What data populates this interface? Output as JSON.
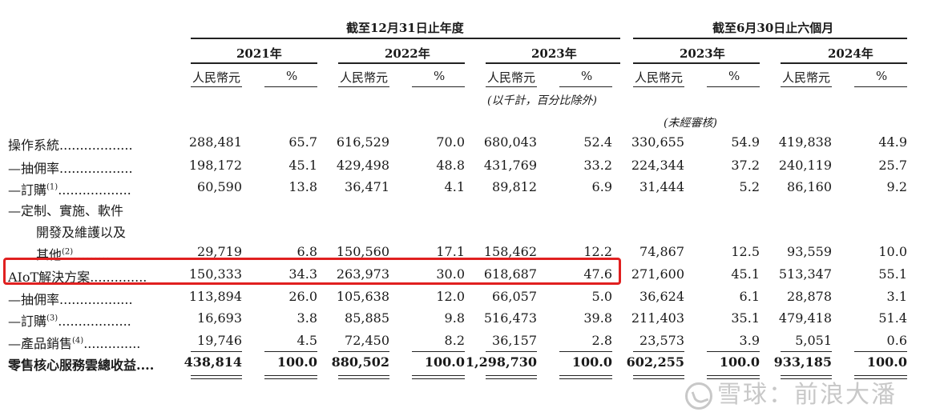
{
  "header": {
    "group1_title": "截至12月31日止年度",
    "group2_title": "截至6月30日止六個月",
    "years": [
      "2021年",
      "2022年",
      "2023年",
      "2023年",
      "2024年"
    ],
    "currency_label": "人民幣元",
    "percent_label": "%",
    "unit_note": "(以千計，百分比除外)",
    "unaudited_note": "(未經審核)"
  },
  "rows": [
    {
      "label": "操作系統",
      "dots": "..................",
      "values": [
        "288,481",
        "65.7",
        "616,529",
        "70.0",
        "680,043",
        "52.4",
        "330,655",
        "54.9",
        "419,838",
        "44.9"
      ]
    },
    {
      "label": "—抽佣率",
      "dots": "..................",
      "values": [
        "198,172",
        "45.1",
        "429,498",
        "48.8",
        "431,769",
        "33.2",
        "224,344",
        "37.2",
        "240,119",
        "25.7"
      ]
    },
    {
      "label": "—訂購",
      "sup": "(1)",
      "dots": "..................",
      "values": [
        "60,590",
        "13.8",
        "36,471",
        "4.1",
        "89,812",
        "6.9",
        "31,444",
        "5.2",
        "86,160",
        "9.2"
      ]
    },
    {
      "label_lines": [
        "—定制、實施、軟件",
        "開發及維護以及",
        "其他"
      ],
      "sup": "(2)",
      "dots": ".........",
      "values": [
        "29,719",
        "6.8",
        "150,560",
        "17.1",
        "158,462",
        "12.2",
        "74,867",
        "12.5",
        "93,559",
        "10.0"
      ]
    },
    {
      "label": "AIoT解決方案",
      "dots": "..............",
      "values": [
        "150,333",
        "34.3",
        "263,973",
        "30.0",
        "618,687",
        "47.6",
        "271,600",
        "45.1",
        "513,347",
        "55.1"
      ]
    },
    {
      "label": "—抽佣率",
      "dots": "..................",
      "values": [
        "113,894",
        "26.0",
        "105,638",
        "12.0",
        "66,057",
        "5.0",
        "36,624",
        "6.1",
        "28,878",
        "3.1"
      ]
    },
    {
      "label": "—訂購",
      "sup": "(3)",
      "dots": "..................",
      "values": [
        "16,693",
        "3.8",
        "85,885",
        "9.8",
        "516,473",
        "39.8",
        "211,403",
        "35.1",
        "479,418",
        "51.4"
      ]
    },
    {
      "label": "—產品銷售",
      "sup": "(4)",
      "dots": "..............",
      "values": [
        "19,746",
        "4.5",
        "72,450",
        "8.2",
        "36,157",
        "2.8",
        "23,573",
        "3.9",
        "5,051",
        "0.6"
      ]
    },
    {
      "label": "零售核心服務雲總收益",
      "dots": "....",
      "values": [
        "438,814",
        "100.0",
        "880,502",
        "100.0",
        "1,298,730",
        "100.0",
        "602,255",
        "100.0",
        "933,185",
        "100.0"
      ]
    }
  ],
  "watermark": "雪球：前浪大潘"
}
